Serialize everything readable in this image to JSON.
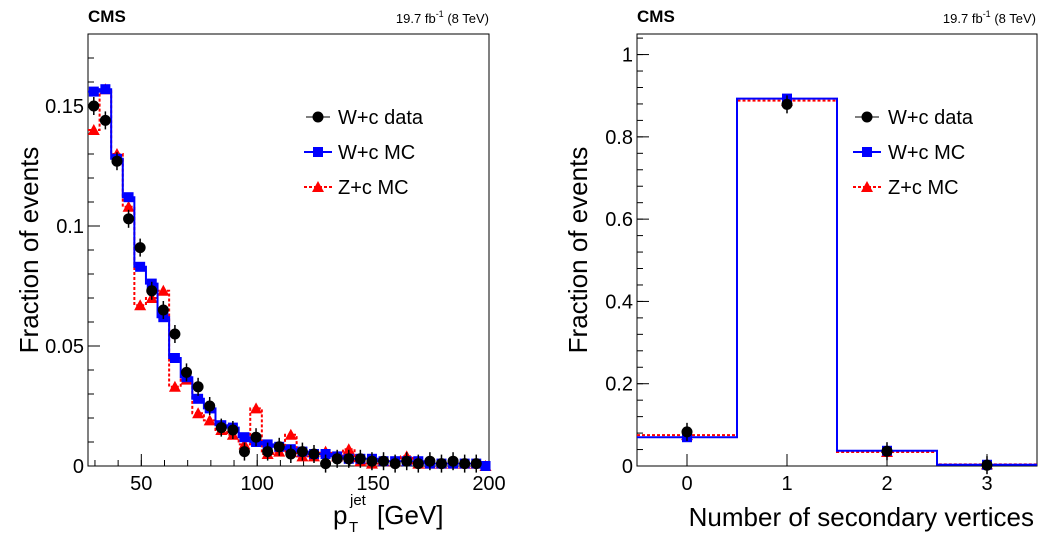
{
  "colors": {
    "data": "#000000",
    "wc_mc": "#0000ff",
    "zc_mc": "#ff0000"
  },
  "chart_data": [
    {
      "type": "line",
      "experiment": "CMS",
      "lumi": "19.7 fb",
      "lumi_exp": "-1",
      "energy": "(8 TeV)",
      "ylabel": "Fraction of events",
      "xlabel_main": "p",
      "xlabel_sub": "T",
      "xlabel_sup": "jet",
      "xlabel_unit": "[GeV]",
      "xlim": [
        27,
        200
      ],
      "ylim": [
        0,
        0.18
      ],
      "xticks": [
        50,
        100,
        150,
        200
      ],
      "xtick_labels": [
        "50",
        "100",
        "150",
        "200"
      ],
      "yticks": [
        0,
        0.05,
        0.1,
        0.15
      ],
      "ytick_labels": [
        "0",
        "0.05",
        "0.1",
        "0.15"
      ],
      "bin_edges": [
        27,
        32,
        37,
        42,
        47,
        52,
        57,
        62,
        67,
        72,
        77,
        82,
        87,
        92,
        97,
        102,
        107,
        112,
        117,
        122,
        127,
        132,
        137,
        142,
        147,
        152,
        157,
        162,
        167,
        172,
        177,
        182,
        187,
        192,
        197,
        200
      ],
      "legend_position": "top-right",
      "legend": [
        "W+c data",
        "W+c MC",
        "Z+c MC"
      ],
      "series": [
        {
          "name": "W+c data",
          "style": "points",
          "x": [
            29.5,
            34.5,
            39.5,
            44.5,
            49.5,
            54.5,
            59.5,
            64.5,
            69.5,
            74.5,
            79.5,
            84.5,
            89.5,
            94.5,
            99.5,
            104.5,
            109.5,
            114.5,
            119.5,
            124.5,
            129.5,
            134.5,
            139.5,
            144.5,
            149.5,
            154.5,
            159.5,
            164.5,
            169.5,
            174.5,
            179.5,
            184.5,
            189.5,
            194.5
          ],
          "y": [
            0.15,
            0.144,
            0.127,
            0.103,
            0.091,
            0.073,
            0.065,
            0.055,
            0.039,
            0.033,
            0.025,
            0.016,
            0.015,
            0.006,
            0.012,
            0.006,
            0.008,
            0.005,
            0.006,
            0.005,
            0.001,
            0.003,
            0.003,
            0.003,
            0.002,
            0.002,
            0.001,
            0.002,
            0.001,
            0.002,
            0.001,
            0.002,
            0.001,
            0.001
          ]
        },
        {
          "name": "W+c MC",
          "style": "step",
          "values": [
            0.156,
            0.157,
            0.128,
            0.112,
            0.083,
            0.076,
            0.062,
            0.045,
            0.037,
            0.028,
            0.024,
            0.017,
            0.016,
            0.012,
            0.01,
            0.009,
            0.008,
            0.007,
            0.006,
            0.005,
            0.005,
            0.004,
            0.003,
            0.003,
            0.003,
            0.002,
            0.002,
            0.002,
            0.002,
            0.001,
            0.001,
            0.001,
            0.001,
            0.001,
            0.0
          ]
        },
        {
          "name": "Z+c MC",
          "style": "step-dashed",
          "values": [
            0.14,
            0.157,
            0.13,
            0.108,
            0.067,
            0.07,
            0.073,
            0.033,
            0.036,
            0.022,
            0.019,
            0.015,
            0.013,
            0.009,
            0.024,
            0.005,
            0.006,
            0.013,
            0.004,
            0.004,
            0.006,
            0.004,
            0.007,
            0.002,
            0.001,
            0.002,
            0.002,
            0.004,
            0.001,
            0.001,
            0.001,
            0.001,
            0.001,
            0.001,
            0.0
          ]
        }
      ]
    },
    {
      "type": "line",
      "experiment": "CMS",
      "lumi": "19.7 fb",
      "lumi_exp": "-1",
      "energy": "(8 TeV)",
      "ylabel": "Fraction of events",
      "xlabel": "Number of secondary vertices",
      "xlim": [
        -0.5,
        3.5
      ],
      "ylim": [
        0,
        1.05
      ],
      "xticks": [
        0,
        1,
        2,
        3
      ],
      "xtick_labels": [
        "0",
        "1",
        "2",
        "3"
      ],
      "yticks": [
        0,
        0.2,
        0.4,
        0.6,
        0.8,
        1
      ],
      "ytick_labels": [
        "0",
        "0.2",
        "0.4",
        "0.6",
        "0.8",
        "1"
      ],
      "bin_edges": [
        -0.5,
        0.5,
        1.5,
        2.5,
        3.5
      ],
      "legend_position": "top-right",
      "legend": [
        "W+c data",
        "W+c MC",
        "Z+c MC"
      ],
      "series": [
        {
          "name": "W+c data",
          "style": "points",
          "x": [
            0,
            1,
            2,
            3
          ],
          "y": [
            0.083,
            0.879,
            0.036,
            0.002
          ]
        },
        {
          "name": "W+c MC",
          "style": "step",
          "values": [
            0.07,
            0.893,
            0.037,
            0.003
          ]
        },
        {
          "name": "Z+c MC",
          "style": "step-dashed",
          "values": [
            0.075,
            0.888,
            0.034,
            0.004
          ]
        }
      ]
    }
  ]
}
